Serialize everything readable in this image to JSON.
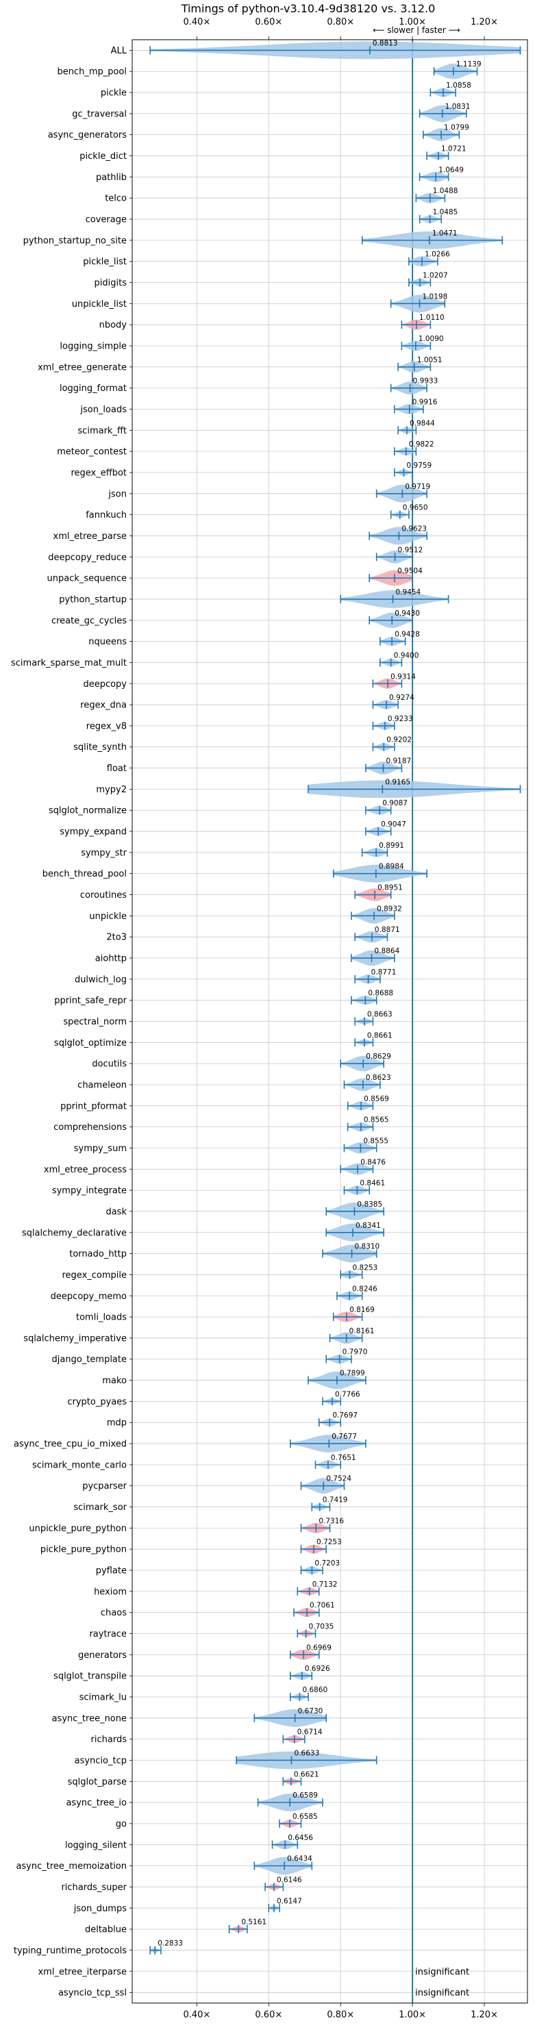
{
  "chart_data": {
    "type": "violin",
    "title": "Timings of python-v3.10.4-9d38120 vs. 3.12.0",
    "direction_label": "⟵ slower | faster ⟶",
    "xlim": [
      0.22,
      1.32
    ],
    "xticks": [
      0.4,
      0.6,
      0.8,
      1.0,
      1.2
    ],
    "xtick_labels": [
      "0.40×",
      "0.60×",
      "0.80×",
      "1.00×",
      "1.20×"
    ],
    "reference_line": 1.0,
    "grid": true,
    "colors": {
      "normal": "#1f77b4",
      "violin": "#a6c8e6",
      "highlight": "#f4a6ae",
      "refline": "#1f77b4"
    },
    "insignificant_label": "insignificant",
    "benchmarks": [
      {
        "name": "ALL",
        "value": 0.8813,
        "min": 0.27,
        "max": 1.3,
        "hl": false
      },
      {
        "name": "bench_mp_pool",
        "value": 1.1139,
        "min": 1.06,
        "max": 1.18,
        "hl": false
      },
      {
        "name": "pickle",
        "value": 1.0858,
        "min": 1.05,
        "max": 1.12,
        "hl": false
      },
      {
        "name": "gc_traversal",
        "value": 1.0831,
        "min": 1.02,
        "max": 1.15,
        "hl": false
      },
      {
        "name": "async_generators",
        "value": 1.0799,
        "min": 1.03,
        "max": 1.13,
        "hl": false
      },
      {
        "name": "pickle_dict",
        "value": 1.0721,
        "min": 1.04,
        "max": 1.1,
        "hl": false
      },
      {
        "name": "pathlib",
        "value": 1.0649,
        "min": 1.02,
        "max": 1.1,
        "hl": false
      },
      {
        "name": "telco",
        "value": 1.0488,
        "min": 1.01,
        "max": 1.09,
        "hl": false
      },
      {
        "name": "coverage",
        "value": 1.0485,
        "min": 1.02,
        "max": 1.08,
        "hl": false
      },
      {
        "name": "python_startup_no_site",
        "value": 1.0471,
        "min": 0.86,
        "max": 1.25,
        "hl": false
      },
      {
        "name": "pickle_list",
        "value": 1.0266,
        "min": 0.99,
        "max": 1.07,
        "hl": false
      },
      {
        "name": "pidigits",
        "value": 1.0207,
        "min": 0.99,
        "max": 1.05,
        "hl": false
      },
      {
        "name": "unpickle_list",
        "value": 1.0198,
        "min": 0.94,
        "max": 1.09,
        "hl": false
      },
      {
        "name": "nbody",
        "value": 1.011,
        "min": 0.97,
        "max": 1.05,
        "hl": true
      },
      {
        "name": "logging_simple",
        "value": 1.009,
        "min": 0.97,
        "max": 1.05,
        "hl": false
      },
      {
        "name": "xml_etree_generate",
        "value": 1.0051,
        "min": 0.96,
        "max": 1.05,
        "hl": false
      },
      {
        "name": "logging_format",
        "value": 0.9933,
        "min": 0.94,
        "max": 1.04,
        "hl": false
      },
      {
        "name": "json_loads",
        "value": 0.9916,
        "min": 0.95,
        "max": 1.03,
        "hl": false
      },
      {
        "name": "scimark_fft",
        "value": 0.9844,
        "min": 0.96,
        "max": 1.01,
        "hl": false
      },
      {
        "name": "meteor_contest",
        "value": 0.9822,
        "min": 0.95,
        "max": 1.01,
        "hl": false
      },
      {
        "name": "regex_effbot",
        "value": 0.9759,
        "min": 0.95,
        "max": 1.0,
        "hl": false
      },
      {
        "name": "json",
        "value": 0.9719,
        "min": 0.9,
        "max": 1.04,
        "hl": false
      },
      {
        "name": "fannkuch",
        "value": 0.965,
        "min": 0.94,
        "max": 0.99,
        "hl": false
      },
      {
        "name": "xml_etree_parse",
        "value": 0.9623,
        "min": 0.88,
        "max": 1.04,
        "hl": false
      },
      {
        "name": "deepcopy_reduce",
        "value": 0.9512,
        "min": 0.9,
        "max": 1.0,
        "hl": false
      },
      {
        "name": "unpack_sequence",
        "value": 0.9504,
        "min": 0.88,
        "max": 1.0,
        "hl": true
      },
      {
        "name": "python_startup",
        "value": 0.9454,
        "min": 0.8,
        "max": 1.1,
        "hl": false
      },
      {
        "name": "create_gc_cycles",
        "value": 0.943,
        "min": 0.88,
        "max": 1.0,
        "hl": false
      },
      {
        "name": "nqueens",
        "value": 0.9428,
        "min": 0.91,
        "max": 0.98,
        "hl": false
      },
      {
        "name": "scimark_sparse_mat_mult",
        "value": 0.94,
        "min": 0.91,
        "max": 0.97,
        "hl": false
      },
      {
        "name": "deepcopy",
        "value": 0.9314,
        "min": 0.89,
        "max": 0.97,
        "hl": true
      },
      {
        "name": "regex_dna",
        "value": 0.9274,
        "min": 0.89,
        "max": 0.96,
        "hl": false
      },
      {
        "name": "regex_v8",
        "value": 0.9233,
        "min": 0.89,
        "max": 0.95,
        "hl": false
      },
      {
        "name": "sqlite_synth",
        "value": 0.9202,
        "min": 0.89,
        "max": 0.95,
        "hl": false
      },
      {
        "name": "float",
        "value": 0.9187,
        "min": 0.87,
        "max": 0.97,
        "hl": false
      },
      {
        "name": "mypy2",
        "value": 0.9165,
        "min": 0.71,
        "max": 1.3,
        "hl": false
      },
      {
        "name": "sqlglot_normalize",
        "value": 0.9087,
        "min": 0.87,
        "max": 0.94,
        "hl": false
      },
      {
        "name": "sympy_expand",
        "value": 0.9047,
        "min": 0.87,
        "max": 0.94,
        "hl": false
      },
      {
        "name": "sympy_str",
        "value": 0.8991,
        "min": 0.86,
        "max": 0.93,
        "hl": false
      },
      {
        "name": "bench_thread_pool",
        "value": 0.8984,
        "min": 0.78,
        "max": 1.04,
        "hl": false
      },
      {
        "name": "coroutines",
        "value": 0.8951,
        "min": 0.84,
        "max": 0.94,
        "hl": true
      },
      {
        "name": "unpickle",
        "value": 0.8932,
        "min": 0.83,
        "max": 0.95,
        "hl": false
      },
      {
        "name": "2to3",
        "value": 0.8871,
        "min": 0.84,
        "max": 0.93,
        "hl": false
      },
      {
        "name": "aiohttp",
        "value": 0.8864,
        "min": 0.83,
        "max": 0.95,
        "hl": false
      },
      {
        "name": "dulwich_log",
        "value": 0.8771,
        "min": 0.84,
        "max": 0.91,
        "hl": false
      },
      {
        "name": "pprint_safe_repr",
        "value": 0.8688,
        "min": 0.83,
        "max": 0.9,
        "hl": false
      },
      {
        "name": "spectral_norm",
        "value": 0.8663,
        "min": 0.84,
        "max": 0.89,
        "hl": false
      },
      {
        "name": "sqlglot_optimize",
        "value": 0.8661,
        "min": 0.84,
        "max": 0.89,
        "hl": false
      },
      {
        "name": "docutils",
        "value": 0.8629,
        "min": 0.8,
        "max": 0.92,
        "hl": false
      },
      {
        "name": "chameleon",
        "value": 0.8623,
        "min": 0.81,
        "max": 0.91,
        "hl": false
      },
      {
        "name": "pprint_pformat",
        "value": 0.8569,
        "min": 0.82,
        "max": 0.89,
        "hl": false
      },
      {
        "name": "comprehensions",
        "value": 0.8565,
        "min": 0.82,
        "max": 0.89,
        "hl": false
      },
      {
        "name": "sympy_sum",
        "value": 0.8555,
        "min": 0.81,
        "max": 0.9,
        "hl": false
      },
      {
        "name": "xml_etree_process",
        "value": 0.8476,
        "min": 0.8,
        "max": 0.89,
        "hl": false
      },
      {
        "name": "sympy_integrate",
        "value": 0.8461,
        "min": 0.81,
        "max": 0.88,
        "hl": false
      },
      {
        "name": "dask",
        "value": 0.8385,
        "min": 0.76,
        "max": 0.92,
        "hl": false
      },
      {
        "name": "sqlalchemy_declarative",
        "value": 0.8341,
        "min": 0.76,
        "max": 0.92,
        "hl": false
      },
      {
        "name": "tornado_http",
        "value": 0.831,
        "min": 0.75,
        "max": 0.9,
        "hl": false
      },
      {
        "name": "regex_compile",
        "value": 0.8253,
        "min": 0.8,
        "max": 0.86,
        "hl": false
      },
      {
        "name": "deepcopy_memo",
        "value": 0.8246,
        "min": 0.79,
        "max": 0.86,
        "hl": false
      },
      {
        "name": "tomli_loads",
        "value": 0.8169,
        "min": 0.78,
        "max": 0.86,
        "hl": true
      },
      {
        "name": "sqlalchemy_imperative",
        "value": 0.8161,
        "min": 0.77,
        "max": 0.86,
        "hl": false
      },
      {
        "name": "django_template",
        "value": 0.797,
        "min": 0.76,
        "max": 0.83,
        "hl": false
      },
      {
        "name": "mako",
        "value": 0.7899,
        "min": 0.71,
        "max": 0.87,
        "hl": false
      },
      {
        "name": "crypto_pyaes",
        "value": 0.7766,
        "min": 0.75,
        "max": 0.8,
        "hl": false
      },
      {
        "name": "mdp",
        "value": 0.7697,
        "min": 0.74,
        "max": 0.8,
        "hl": false
      },
      {
        "name": "async_tree_cpu_io_mixed",
        "value": 0.7677,
        "min": 0.66,
        "max": 0.87,
        "hl": false
      },
      {
        "name": "scimark_monte_carlo",
        "value": 0.7651,
        "min": 0.73,
        "max": 0.8,
        "hl": false
      },
      {
        "name": "pycparser",
        "value": 0.7524,
        "min": 0.69,
        "max": 0.81,
        "hl": false
      },
      {
        "name": "scimark_sor",
        "value": 0.7419,
        "min": 0.72,
        "max": 0.77,
        "hl": false
      },
      {
        "name": "unpickle_pure_python",
        "value": 0.7316,
        "min": 0.69,
        "max": 0.77,
        "hl": true
      },
      {
        "name": "pickle_pure_python",
        "value": 0.7253,
        "min": 0.69,
        "max": 0.76,
        "hl": true
      },
      {
        "name": "pyflate",
        "value": 0.7203,
        "min": 0.69,
        "max": 0.75,
        "hl": false
      },
      {
        "name": "hexiom",
        "value": 0.7132,
        "min": 0.68,
        "max": 0.74,
        "hl": true
      },
      {
        "name": "chaos",
        "value": 0.7061,
        "min": 0.67,
        "max": 0.74,
        "hl": true
      },
      {
        "name": "raytrace",
        "value": 0.7035,
        "min": 0.68,
        "max": 0.73,
        "hl": true
      },
      {
        "name": "generators",
        "value": 0.6969,
        "min": 0.66,
        "max": 0.74,
        "hl": true
      },
      {
        "name": "sqlglot_transpile",
        "value": 0.6926,
        "min": 0.66,
        "max": 0.72,
        "hl": false
      },
      {
        "name": "scimark_lu",
        "value": 0.686,
        "min": 0.66,
        "max": 0.71,
        "hl": false
      },
      {
        "name": "async_tree_none",
        "value": 0.673,
        "min": 0.56,
        "max": 0.76,
        "hl": false
      },
      {
        "name": "richards",
        "value": 0.6714,
        "min": 0.64,
        "max": 0.7,
        "hl": true
      },
      {
        "name": "asyncio_tcp",
        "value": 0.6633,
        "min": 0.51,
        "max": 0.9,
        "hl": false
      },
      {
        "name": "sqlglot_parse",
        "value": 0.6621,
        "min": 0.64,
        "max": 0.69,
        "hl": true
      },
      {
        "name": "async_tree_io",
        "value": 0.6589,
        "min": 0.57,
        "max": 0.75,
        "hl": false
      },
      {
        "name": "go",
        "value": 0.6585,
        "min": 0.63,
        "max": 0.69,
        "hl": true
      },
      {
        "name": "logging_silent",
        "value": 0.6456,
        "min": 0.61,
        "max": 0.68,
        "hl": false
      },
      {
        "name": "async_tree_memoization",
        "value": 0.6434,
        "min": 0.56,
        "max": 0.72,
        "hl": false
      },
      {
        "name": "richards_super",
        "value": 0.6146,
        "min": 0.59,
        "max": 0.64,
        "hl": true
      },
      {
        "name": "json_dumps",
        "value": 0.6147,
        "min": 0.6,
        "max": 0.63,
        "hl": false
      },
      {
        "name": "deltablue",
        "value": 0.5161,
        "min": 0.49,
        "max": 0.54,
        "hl": true
      },
      {
        "name": "typing_runtime_protocols",
        "value": 0.2833,
        "min": 0.27,
        "max": 0.3,
        "hl": false
      },
      {
        "name": "xml_etree_iterparse",
        "value": null,
        "insignificant": true
      },
      {
        "name": "asyncio_tcp_ssl",
        "value": null,
        "insignificant": true
      }
    ]
  }
}
